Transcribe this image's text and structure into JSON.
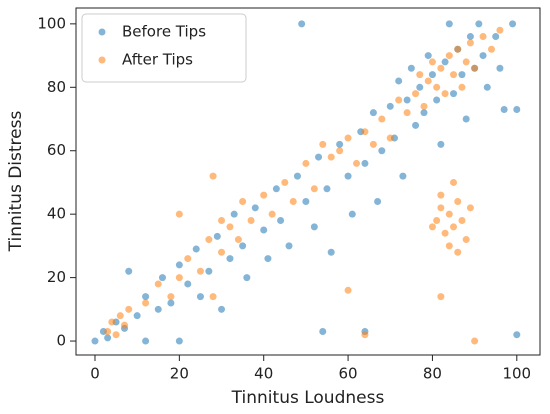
{
  "chart_data": {
    "type": "scatter",
    "xlabel": "Tinnitus Loudness",
    "ylabel": "Tinnitus Distress",
    "xlim": [
      -4.5,
      105.5
    ],
    "ylim": [
      -4.4,
      105
    ],
    "xticks": [
      0,
      20,
      40,
      60,
      80,
      100
    ],
    "yticks": [
      0,
      20,
      40,
      60,
      80,
      100
    ],
    "legend": "upper left",
    "series": [
      {
        "name": "Before Tips",
        "color": "#1f77b4",
        "x": [
          0,
          2,
          3,
          5,
          7,
          8,
          10,
          12,
          12,
          15,
          16,
          18,
          20,
          22,
          24,
          25,
          27,
          29,
          30,
          32,
          33,
          35,
          36,
          38,
          40,
          41,
          43,
          44,
          46,
          48,
          49,
          50,
          52,
          53,
          55,
          56,
          58,
          60,
          61,
          63,
          64,
          66,
          67,
          68,
          70,
          71,
          72,
          73,
          74,
          75,
          76,
          77,
          78,
          79,
          80,
          81,
          82,
          83,
          84,
          85,
          86,
          87,
          88,
          89,
          90,
          91,
          92,
          93,
          95,
          96,
          97,
          99,
          100,
          54,
          64,
          20,
          100
        ],
        "values": [
          0,
          3,
          1,
          6,
          4,
          22,
          8,
          14,
          0,
          10,
          20,
          12,
          24,
          18,
          29,
          14,
          22,
          33,
          10,
          26,
          40,
          30,
          20,
          42,
          35,
          26,
          48,
          38,
          30,
          52,
          100,
          44,
          36,
          58,
          48,
          28,
          62,
          52,
          40,
          66,
          56,
          72,
          44,
          60,
          74,
          64,
          82,
          52,
          76,
          86,
          68,
          80,
          72,
          90,
          84,
          76,
          62,
          88,
          100,
          78,
          92,
          84,
          70,
          96,
          86,
          100,
          90,
          80,
          96,
          86,
          73,
          100,
          2,
          3,
          3,
          0,
          73
        ]
      },
      {
        "name": "After Tips",
        "color": "#ff7f0e",
        "x": [
          3,
          4,
          5,
          6,
          7,
          8,
          12,
          15,
          18,
          20,
          22,
          25,
          27,
          28,
          30,
          32,
          34,
          35,
          37,
          40,
          42,
          45,
          47,
          50,
          52,
          54,
          56,
          58,
          60,
          62,
          64,
          66,
          68,
          70,
          72,
          74,
          76,
          77,
          78,
          79,
          80,
          81,
          82,
          83,
          84,
          85,
          86,
          87,
          88,
          89,
          90,
          92,
          94,
          96,
          81,
          82,
          83,
          84,
          85,
          86,
          87,
          88,
          84,
          82,
          86,
          89,
          80,
          85,
          90,
          82,
          60,
          64,
          20,
          28,
          30
        ],
        "values": [
          3,
          6,
          2,
          8,
          5,
          10,
          12,
          18,
          14,
          20,
          26,
          22,
          32,
          14,
          28,
          36,
          32,
          44,
          38,
          46,
          40,
          50,
          44,
          56,
          48,
          62,
          58,
          60,
          64,
          56,
          66,
          62,
          70,
          64,
          76,
          72,
          78,
          84,
          74,
          82,
          88,
          80,
          86,
          78,
          90,
          84,
          92,
          80,
          88,
          94,
          86,
          96,
          92,
          98,
          38,
          42,
          34,
          40,
          36,
          44,
          38,
          32,
          30,
          46,
          28,
          42,
          36,
          50,
          0,
          14,
          16,
          2,
          40,
          52,
          38
        ]
      }
    ]
  }
}
